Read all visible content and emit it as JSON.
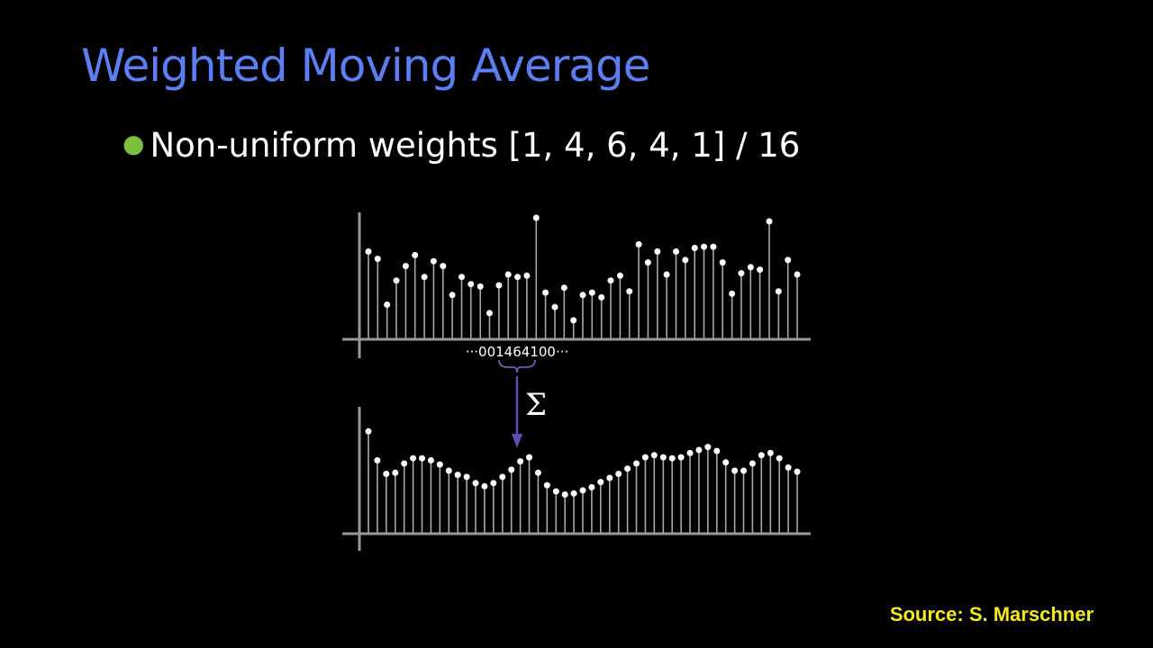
{
  "slide": {
    "title": "Weighted Moving Average",
    "bullet": "Non-uniform weights [1, 4, 6, 4, 1] / 16",
    "source": "Source: S. Marschner"
  },
  "figure": {
    "kernel_label": "···001464100···",
    "sum_symbol": "Σ",
    "input_signal": [
      0.72,
      0.66,
      0.28,
      0.48,
      0.6,
      0.69,
      0.51,
      0.64,
      0.6,
      0.36,
      0.51,
      0.45,
      0.43,
      0.21,
      0.44,
      0.53,
      0.51,
      0.52,
      1.0,
      0.38,
      0.26,
      0.42,
      0.15,
      0.36,
      0.38,
      0.34,
      0.48,
      0.52,
      0.39,
      0.78,
      0.63,
      0.72,
      0.53,
      0.72,
      0.65,
      0.75,
      0.76,
      0.76,
      0.63,
      0.37,
      0.54,
      0.59,
      0.57,
      0.97,
      0.39,
      0.65,
      0.53
    ],
    "output_signal": [
      0.98,
      0.7,
      0.57,
      0.58,
      0.67,
      0.72,
      0.72,
      0.7,
      0.66,
      0.6,
      0.56,
      0.54,
      0.48,
      0.45,
      0.48,
      0.54,
      0.61,
      0.69,
      0.73,
      0.58,
      0.46,
      0.4,
      0.37,
      0.38,
      0.41,
      0.44,
      0.49,
      0.53,
      0.57,
      0.62,
      0.67,
      0.73,
      0.75,
      0.73,
      0.72,
      0.73,
      0.77,
      0.8,
      0.83,
      0.79,
      0.68,
      0.6,
      0.6,
      0.67,
      0.75,
      0.77,
      0.72,
      0.63,
      0.59
    ]
  }
}
